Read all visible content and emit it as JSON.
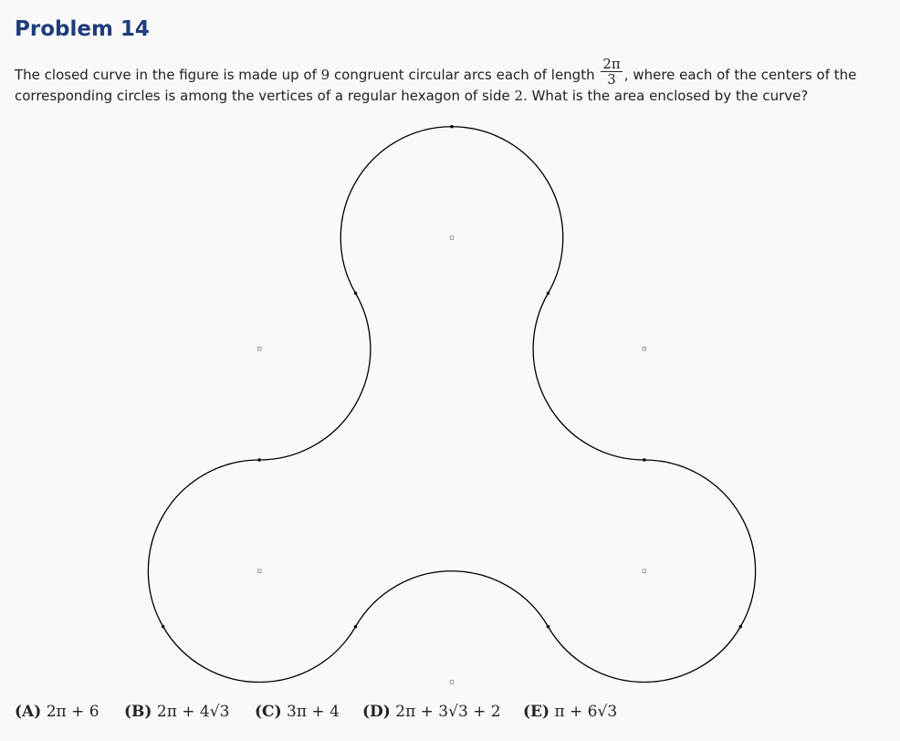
{
  "header": {
    "title": "Problem 14"
  },
  "problem": {
    "text_before_fraction": "The closed curve in the figure is made up of ",
    "count": "9",
    "text_mid": " congruent circular arcs each of length ",
    "fraction_numerator": "2π",
    "fraction_denominator": "3",
    "text_after_fraction": ", where each of the centers of the",
    "line2_before": "corresponding circles is among the vertices of a regular hexagon of side ",
    "side": "2",
    "line2_after": ". What is the area enclosed by the curve?"
  },
  "choices": [
    {
      "letter": "(A)",
      "value": "2π + 6"
    },
    {
      "letter": "(B)",
      "value": "2π + 4√3"
    },
    {
      "letter": "(C)",
      "value": "3π + 4"
    },
    {
      "letter": "(D)",
      "value": "2π + 3√3 + 2"
    },
    {
      "letter": "(E)",
      "value": "π + 6√3"
    }
  ],
  "figure": {
    "curve_color": "#000000",
    "center_marker_color": "#888888"
  }
}
